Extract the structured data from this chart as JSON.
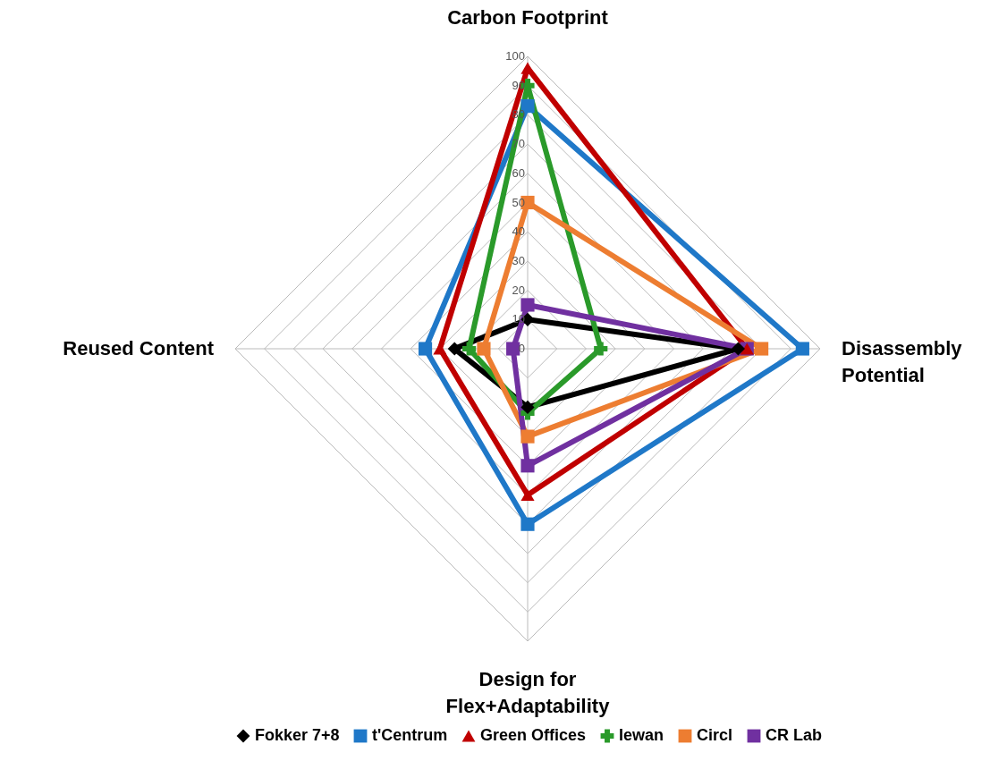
{
  "chart_data": {
    "type": "radar",
    "categories": [
      "Carbon Footprint",
      "Disassembly Potential",
      "Design for Flex+Adaptability",
      "Reused Content"
    ],
    "series": [
      {
        "name": "Fokker 7+8",
        "color": "#000000",
        "marker": "diamond",
        "values": [
          10,
          72,
          20,
          25
        ]
      },
      {
        "name": "t'Centrum",
        "color": "#1f78c8",
        "marker": "square",
        "values": [
          83,
          94,
          60,
          35
        ]
      },
      {
        "name": "Green Offices",
        "color": "#c00000",
        "marker": "triangle",
        "values": [
          96,
          75,
          50,
          30
        ]
      },
      {
        "name": "Iewan",
        "color": "#2a9a2a",
        "marker": "cross",
        "values": [
          90,
          25,
          22,
          20
        ]
      },
      {
        "name": "Circl",
        "color": "#ed7d31",
        "marker": "square",
        "values": [
          50,
          80,
          30,
          15
        ]
      },
      {
        "name": "CR Lab",
        "color": "#7030a0",
        "marker": "square",
        "values": [
          15,
          75,
          40,
          5
        ]
      }
    ],
    "ylim": [
      0,
      100
    ],
    "yticks": [
      0,
      10,
      20,
      30,
      40,
      50,
      60,
      70,
      80,
      90,
      100
    ],
    "grid": true,
    "legend": "bottom",
    "line_style": "solid"
  }
}
